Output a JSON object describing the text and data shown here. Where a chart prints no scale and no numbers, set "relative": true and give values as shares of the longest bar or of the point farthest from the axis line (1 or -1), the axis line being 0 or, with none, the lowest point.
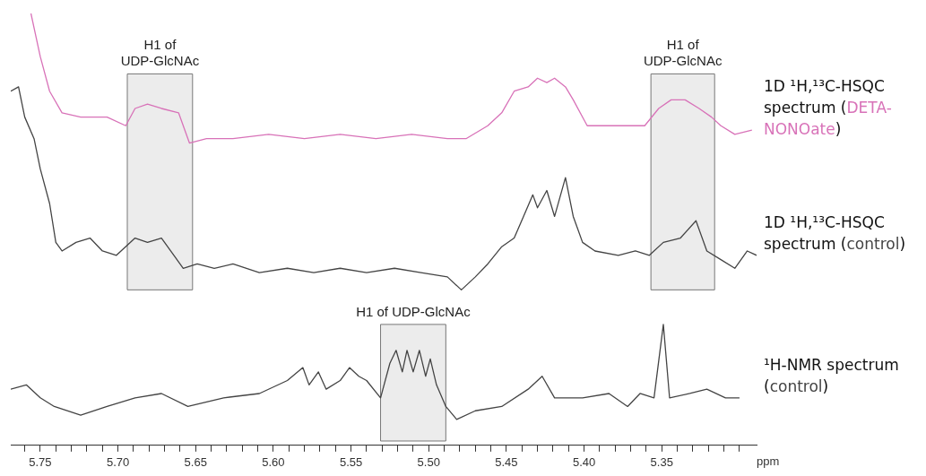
{
  "chart_data": {
    "type": "line",
    "relative": true,
    "xlim": [
      5.769,
      5.289
    ],
    "xlabel": "ppm",
    "xticks": [
      {
        "value": 5.76,
        "label": null
      },
      {
        "value": 5.75,
        "label": "5.75"
      },
      {
        "value": 5.74,
        "label": null
      },
      {
        "value": 5.73,
        "label": null
      },
      {
        "value": 5.72,
        "label": null
      },
      {
        "value": 5.71,
        "label": null
      },
      {
        "value": 5.7,
        "label": "5.70"
      },
      {
        "value": 5.69,
        "label": null
      },
      {
        "value": 5.68,
        "label": null
      },
      {
        "value": 5.67,
        "label": null
      },
      {
        "value": 5.66,
        "label": null
      },
      {
        "value": 5.65,
        "label": "5.65"
      },
      {
        "value": 5.64,
        "label": null
      },
      {
        "value": 5.63,
        "label": null
      },
      {
        "value": 5.62,
        "label": null
      },
      {
        "value": 5.61,
        "label": null
      },
      {
        "value": 5.6,
        "label": "5.60"
      },
      {
        "value": 5.59,
        "label": null
      },
      {
        "value": 5.58,
        "label": null
      },
      {
        "value": 5.57,
        "label": null
      },
      {
        "value": 5.56,
        "label": null
      },
      {
        "value": 5.55,
        "label": "5.55"
      },
      {
        "value": 5.54,
        "label": null
      },
      {
        "value": 5.53,
        "label": null
      },
      {
        "value": 5.52,
        "label": null
      },
      {
        "value": 5.51,
        "label": null
      },
      {
        "value": 5.5,
        "label": "5.50"
      },
      {
        "value": 5.49,
        "label": null
      },
      {
        "value": 5.48,
        "label": null
      },
      {
        "value": 5.47,
        "label": null
      },
      {
        "value": 5.46,
        "label": null
      },
      {
        "value": 5.45,
        "label": "5.45"
      },
      {
        "value": 5.44,
        "label": null
      },
      {
        "value": 5.43,
        "label": null
      },
      {
        "value": 5.42,
        "label": null
      },
      {
        "value": 5.41,
        "label": null
      },
      {
        "value": 5.4,
        "label": "5.40"
      },
      {
        "value": 5.39,
        "label": null
      },
      {
        "value": 5.38,
        "label": null
      },
      {
        "value": 5.37,
        "label": null
      },
      {
        "value": 5.36,
        "label": null
      },
      {
        "value": 5.35,
        "label": "5.35"
      },
      {
        "value": 5.34,
        "label": null
      },
      {
        "value": 5.33,
        "label": null
      },
      {
        "value": 5.32,
        "label": null
      },
      {
        "value": 5.31,
        "label": null
      },
      {
        "value": 5.3,
        "label": null
      }
    ],
    "bands": [
      {
        "axis": "x",
        "from": 5.694,
        "to": 5.652,
        "label": "H1 of UDP-GlcNAc",
        "color": "#ececec"
      },
      {
        "axis": "x",
        "from": 5.357,
        "to": 5.316,
        "label": "H1 of UDP-GlcNAc",
        "color": "#ececec"
      },
      {
        "axis": "x",
        "from": 5.531,
        "to": 5.489,
        "label": "H1 of UDP-GlcNAc",
        "color": "#ececec"
      }
    ],
    "series": [
      {
        "name": "1D ¹H,¹³C-HSQC spectrum (DETA-NONOate)",
        "color": "#d872b8",
        "x": [
          5.756,
          5.75,
          5.744,
          5.736,
          5.724,
          5.707,
          5.695,
          5.689,
          5.681,
          5.672,
          5.661,
          5.654,
          5.643,
          5.626,
          5.603,
          5.58,
          5.557,
          5.534,
          5.511,
          5.488,
          5.476,
          5.462,
          5.453,
          5.445,
          5.436,
          5.43,
          5.424,
          5.419,
          5.412,
          5.407,
          5.398,
          5.384,
          5.372,
          5.361,
          5.352,
          5.344,
          5.335,
          5.326,
          5.318,
          5.312,
          5.303,
          5.292
        ],
        "values": [
          1.0,
          0.9,
          0.82,
          0.77,
          0.76,
          0.76,
          0.74,
          0.78,
          0.79,
          0.78,
          0.77,
          0.7,
          0.71,
          0.71,
          0.72,
          0.71,
          0.72,
          0.71,
          0.72,
          0.71,
          0.71,
          0.74,
          0.77,
          0.82,
          0.83,
          0.85,
          0.84,
          0.85,
          0.83,
          0.8,
          0.74,
          0.74,
          0.74,
          0.74,
          0.78,
          0.8,
          0.8,
          0.78,
          0.76,
          0.74,
          0.72,
          0.73
        ]
      },
      {
        "name": "1D ¹H,¹³C-HSQC spectrum (control)",
        "color": "#444444",
        "x": [
          5.769,
          5.764,
          5.76,
          5.754,
          5.75,
          5.744,
          5.74,
          5.736,
          5.727,
          5.718,
          5.71,
          5.701,
          5.689,
          5.681,
          5.672,
          5.664,
          5.658,
          5.649,
          5.638,
          5.626,
          5.609,
          5.591,
          5.574,
          5.557,
          5.54,
          5.522,
          5.505,
          5.488,
          5.479,
          5.47,
          5.462,
          5.453,
          5.445,
          5.439,
          5.433,
          5.43,
          5.424,
          5.419,
          5.412,
          5.407,
          5.401,
          5.393,
          5.378,
          5.367,
          5.358,
          5.349,
          5.338,
          5.328,
          5.321,
          5.312,
          5.303,
          5.295,
          5.289
        ],
        "values": [
          0.82,
          0.83,
          0.76,
          0.71,
          0.64,
          0.56,
          0.47,
          0.45,
          0.47,
          0.48,
          0.45,
          0.44,
          0.48,
          0.47,
          0.48,
          0.44,
          0.41,
          0.42,
          0.41,
          0.42,
          0.4,
          0.41,
          0.4,
          0.41,
          0.4,
          0.41,
          0.4,
          0.39,
          0.36,
          0.39,
          0.42,
          0.46,
          0.48,
          0.53,
          0.58,
          0.55,
          0.59,
          0.53,
          0.62,
          0.53,
          0.47,
          0.45,
          0.44,
          0.45,
          0.44,
          0.47,
          0.48,
          0.52,
          0.45,
          0.43,
          0.41,
          0.45,
          0.44
        ]
      },
      {
        "name": "¹H-NMR spectrum (control)",
        "color": "#444444",
        "x": [
          5.769,
          5.759,
          5.75,
          5.741,
          5.724,
          5.707,
          5.689,
          5.672,
          5.655,
          5.632,
          5.609,
          5.591,
          5.581,
          5.577,
          5.571,
          5.566,
          5.557,
          5.551,
          5.545,
          5.54,
          5.531,
          5.525,
          5.521,
          5.517,
          5.514,
          5.51,
          5.506,
          5.502,
          5.499,
          5.495,
          5.489,
          5.482,
          5.47,
          5.453,
          5.436,
          5.427,
          5.419,
          5.401,
          5.384,
          5.372,
          5.364,
          5.355,
          5.349,
          5.345,
          5.332,
          5.321,
          5.309,
          5.3
        ],
        "values": [
          0.13,
          0.14,
          0.11,
          0.09,
          0.07,
          0.09,
          0.11,
          0.12,
          0.09,
          0.11,
          0.12,
          0.15,
          0.18,
          0.14,
          0.17,
          0.13,
          0.15,
          0.18,
          0.16,
          0.15,
          0.11,
          0.19,
          0.22,
          0.17,
          0.22,
          0.17,
          0.22,
          0.16,
          0.2,
          0.14,
          0.09,
          0.06,
          0.08,
          0.09,
          0.13,
          0.16,
          0.11,
          0.11,
          0.12,
          0.09,
          0.12,
          0.11,
          0.28,
          0.11,
          0.12,
          0.13,
          0.11,
          0.11
        ]
      }
    ]
  }
}
